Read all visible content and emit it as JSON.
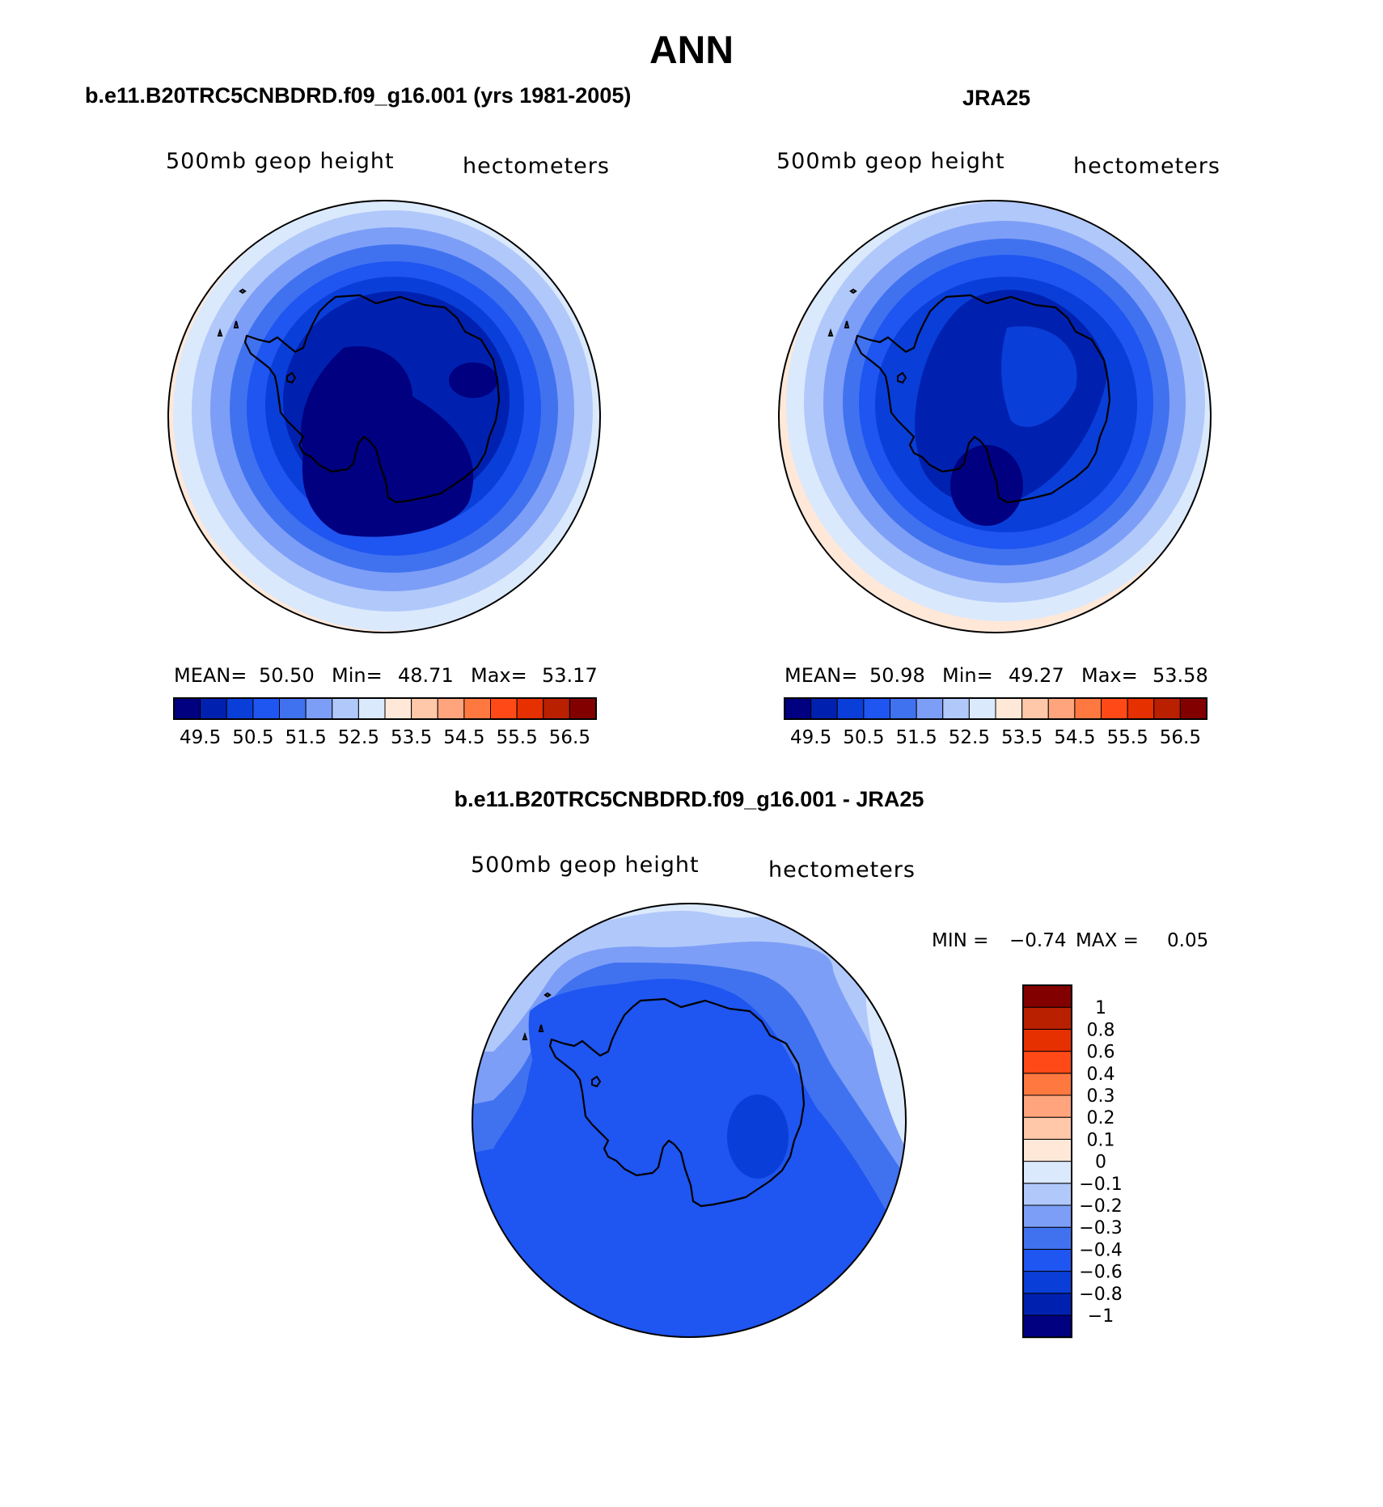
{
  "figure": {
    "season": "ANN"
  },
  "panels": [
    {
      "header": "b.e11.B20TRC5CNBDRD.f09_g16.001 (yrs 1981-2005)",
      "field_label": "500mb geop height",
      "units": "hectometers",
      "stats": {
        "mean_label": "MEAN=",
        "mean": "50.50",
        "min_label": "Min=",
        "min": "48.71",
        "max_label": "Max=",
        "max": "53.17"
      }
    },
    {
      "header": "JRA25",
      "field_label": "500mb geop height",
      "units": "hectometers",
      "stats": {
        "mean_label": "MEAN=",
        "mean": "50.98",
        "min_label": "Min=",
        "min": "49.27",
        "max_label": "Max=",
        "max": "53.58"
      }
    },
    {
      "header": "b.e11.B20TRC5CNBDRD.f09_g16.001 - JRA25",
      "field_label": "500mb geop height",
      "units": "hectometers",
      "stats": {
        "min_label": "MIN =",
        "min": "−0.74",
        "max_label": "MAX =",
        "max": "0.05"
      }
    }
  ],
  "colorbars": {
    "absolute": {
      "colors": [
        "#000080",
        "#0021b0",
        "#0a3ed8",
        "#1f55f0",
        "#4072f0",
        "#7d9ef7",
        "#b1c8fa",
        "#dbe9fc",
        "#ffe8d8",
        "#ffc8a8",
        "#ffa47c",
        "#ff7840",
        "#ff4a17",
        "#e63000",
        "#b82000",
        "#830000"
      ],
      "tick_labels": [
        "49.5",
        "50.5",
        "51.5",
        "52.5",
        "53.5",
        "54.5",
        "55.5",
        "56.5"
      ]
    },
    "difference": {
      "colors": [
        "#000080",
        "#0021b0",
        "#0a3ed8",
        "#1f55f0",
        "#4072f0",
        "#7d9ef7",
        "#b1c8fa",
        "#dbe9fc",
        "#ffe8d8",
        "#ffc8a8",
        "#ffa47c",
        "#ff7840",
        "#ff4a17",
        "#e63000",
        "#b82000",
        "#830000"
      ],
      "tick_labels": [
        "−1",
        "−0.8",
        "−0.6",
        "−0.4",
        "−0.3",
        "−0.2",
        "−0.1",
        "0",
        "0.1",
        "0.2",
        "0.3",
        "0.4",
        "0.6",
        "0.8",
        "1"
      ]
    }
  }
}
